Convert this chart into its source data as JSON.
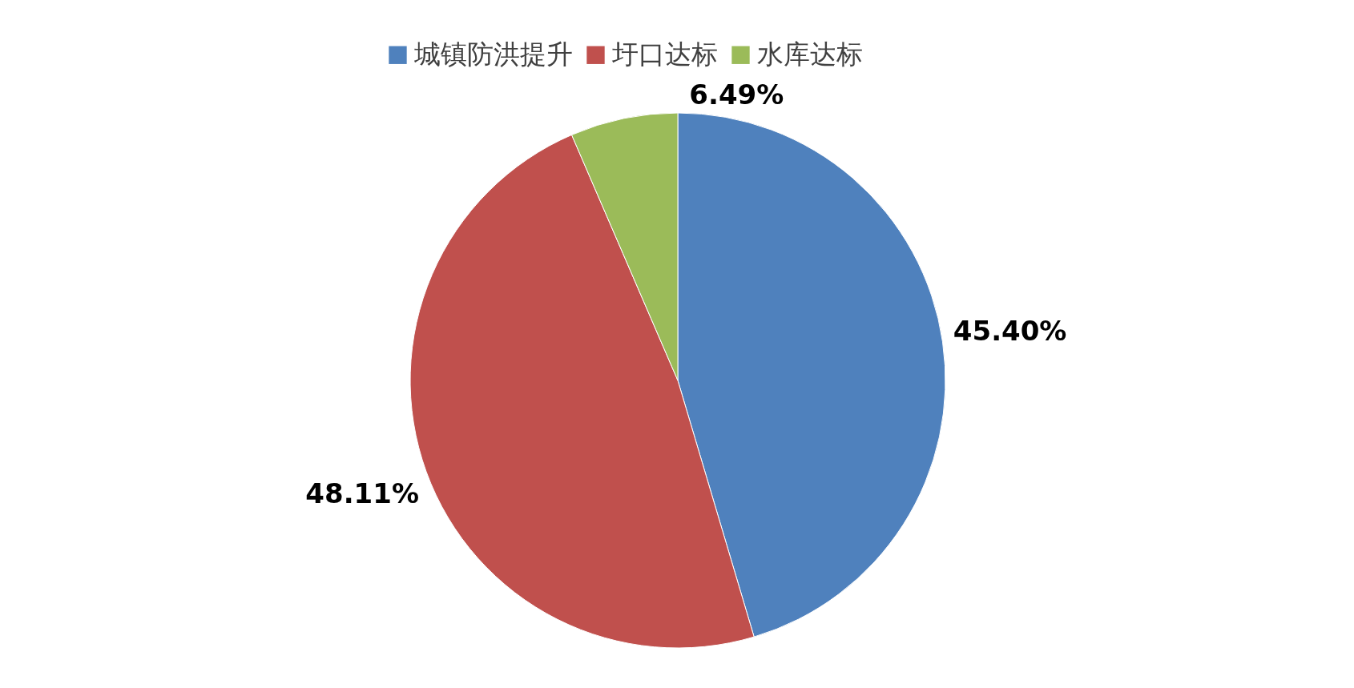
{
  "chart_data": {
    "type": "pie",
    "categories": [
      "城镇防洪提升",
      "圩口达标",
      "水库达标"
    ],
    "values": [
      45.4,
      48.11,
      6.49
    ],
    "colors": [
      "#4f81bd",
      "#c0504d",
      "#9bbb59"
    ],
    "value_labels": [
      "45.40%",
      "48.11%",
      "6.49%"
    ],
    "legend": "top"
  }
}
